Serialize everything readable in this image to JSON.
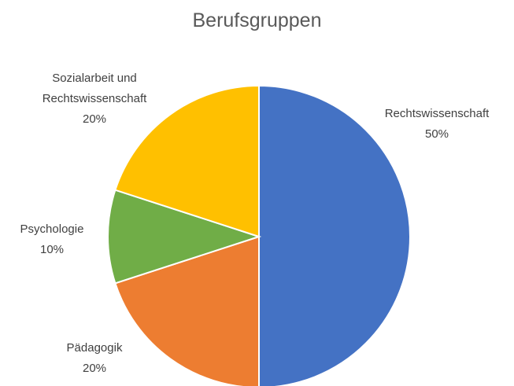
{
  "chart_data": {
    "type": "pie",
    "title": "Berufsgruppen",
    "categories": [
      "Rechtswissenschaft",
      "Pädagogik",
      "Psychologie",
      "Sozialarbeit und Rechtswissenschaft"
    ],
    "values": [
      50,
      20,
      10,
      20
    ],
    "value_labels": [
      "50%",
      "20%",
      "10%",
      "20%"
    ],
    "colors": [
      "#4472c4",
      "#ed7d31",
      "#70ad47",
      "#ffc000"
    ]
  }
}
